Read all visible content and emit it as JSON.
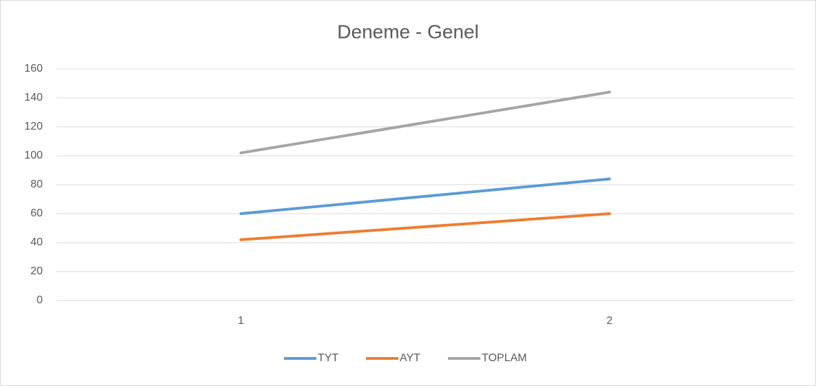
{
  "chart_data": {
    "type": "line",
    "title": "Deneme - Genel",
    "categories": [
      "1",
      "2"
    ],
    "series": [
      {
        "name": "TYT",
        "color": "#5b9bd5",
        "values": [
          60,
          84
        ]
      },
      {
        "name": "AYT",
        "color": "#ed7d31",
        "values": [
          42,
          60
        ]
      },
      {
        "name": "TOPLAM",
        "color": "#a5a5a5",
        "values": [
          102,
          144
        ]
      }
    ],
    "ylim": [
      0,
      160
    ],
    "yticks": [
      0,
      20,
      40,
      60,
      80,
      100,
      120,
      140,
      160
    ],
    "grid": true,
    "legend": "bottom"
  }
}
